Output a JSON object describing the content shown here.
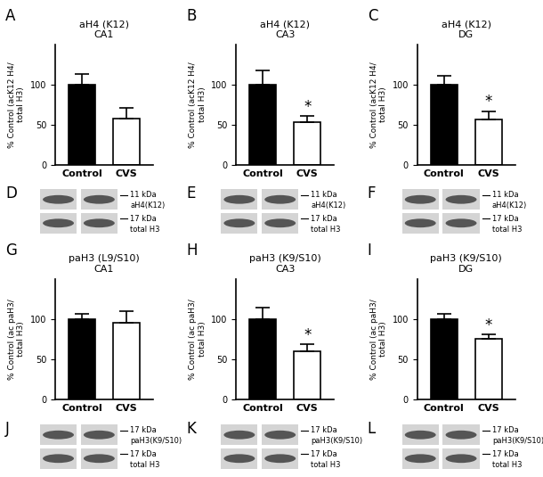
{
  "chart_data": [
    {
      "type": "bar",
      "panel": "A",
      "title": "aH4 (K12)\nCA1",
      "y_label": "% Control (acK12 H4/\ntotal H3)",
      "categories": [
        "Control",
        "CVS"
      ],
      "values": [
        100,
        58
      ],
      "errors": [
        13,
        13
      ],
      "colors": [
        "#000000",
        "#ffffff"
      ],
      "ylim": [
        0,
        150
      ],
      "yticks": [
        0,
        50,
        100
      ],
      "annotations": []
    },
    {
      "type": "bar",
      "panel": "B",
      "title": "aH4 (K12)\nCA3",
      "y_label": "% Control (acK12 H4/\ntotal H3)",
      "categories": [
        "Control",
        "CVS"
      ],
      "values": [
        100,
        53
      ],
      "errors": [
        18,
        8
      ],
      "colors": [
        "#000000",
        "#ffffff"
      ],
      "ylim": [
        0,
        150
      ],
      "yticks": [
        0,
        50,
        100
      ],
      "annotations": [
        {
          "category": "CVS",
          "text": "*"
        }
      ]
    },
    {
      "type": "bar",
      "panel": "C",
      "title": "aH4 (K12)\nDG",
      "y_label": "% Control (acK12 H4/\ntotal H3)",
      "categories": [
        "Control",
        "CVS"
      ],
      "values": [
        100,
        57
      ],
      "errors": [
        11,
        10
      ],
      "colors": [
        "#000000",
        "#ffffff"
      ],
      "ylim": [
        0,
        150
      ],
      "yticks": [
        0,
        50,
        100
      ],
      "annotations": [
        {
          "category": "CVS",
          "text": "*"
        }
      ]
    },
    {
      "type": "bar",
      "panel": "G",
      "title": "paH3 (L9/S10)\nCA1",
      "y_label": "% Control (ac paH3/\ntotal H3)",
      "categories": [
        "Control",
        "CVS"
      ],
      "values": [
        100,
        96
      ],
      "errors": [
        7,
        14
      ],
      "colors": [
        "#000000",
        "#ffffff"
      ],
      "ylim": [
        0,
        150
      ],
      "yticks": [
        0,
        50,
        100
      ],
      "annotations": []
    },
    {
      "type": "bar",
      "panel": "H",
      "title": "paH3 (K9/S10)\nCA3",
      "y_label": "% Control (ac paH3/\ntotal H3)",
      "categories": [
        "Control",
        "CVS"
      ],
      "values": [
        100,
        60
      ],
      "errors": [
        14,
        9
      ],
      "colors": [
        "#000000",
        "#ffffff"
      ],
      "ylim": [
        0,
        150
      ],
      "yticks": [
        0,
        50,
        100
      ],
      "annotations": [
        {
          "category": "CVS",
          "text": "*"
        }
      ]
    },
    {
      "type": "bar",
      "panel": "I",
      "title": "paH3 (K9/S10)\nDG",
      "y_label": "% Control (ac paH3/\ntotal H3)",
      "categories": [
        "Control",
        "CVS"
      ],
      "values": [
        100,
        76
      ],
      "errors": [
        7,
        5
      ],
      "colors": [
        "#000000",
        "#ffffff"
      ],
      "ylim": [
        0,
        150
      ],
      "yticks": [
        0,
        50,
        100
      ],
      "annotations": [
        {
          "category": "CVS",
          "text": "*"
        }
      ]
    }
  ],
  "blots": [
    {
      "panel": "D",
      "rows": [
        {
          "size": "11 kDa",
          "label": "aH4(K12)"
        },
        {
          "size": "17 kDa",
          "label": "total H3"
        }
      ]
    },
    {
      "panel": "E",
      "rows": [
        {
          "size": "11 kDa",
          "label": "aH4(K12)"
        },
        {
          "size": "17 kDa",
          "label": "total H3"
        }
      ]
    },
    {
      "panel": "F",
      "rows": [
        {
          "size": "11 kDa",
          "label": "aH4(K12)"
        },
        {
          "size": "17 kDa",
          "label": "total H3"
        }
      ]
    },
    {
      "panel": "J",
      "rows": [
        {
          "size": "17 kDa",
          "label": "paH3(K9/S10)"
        },
        {
          "size": "17 kDa",
          "label": "total H3"
        }
      ]
    },
    {
      "panel": "K",
      "rows": [
        {
          "size": "17 kDa",
          "label": "paH3(K9/S10)"
        },
        {
          "size": "17 kDa",
          "label": "total H3"
        }
      ]
    },
    {
      "panel": "L",
      "rows": [
        {
          "size": "17 kDa",
          "label": "paH3(K9/S10)"
        },
        {
          "size": "17 kDa",
          "label": "total H3"
        }
      ]
    }
  ]
}
